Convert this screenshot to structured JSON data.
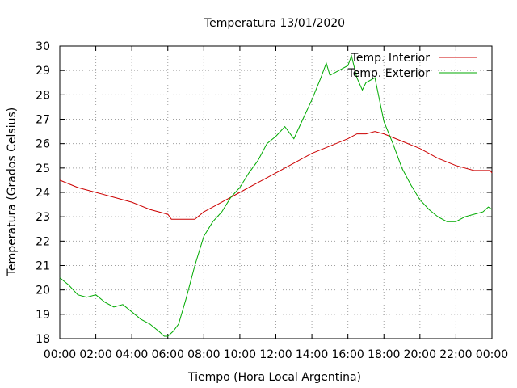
{
  "chart_data": {
    "type": "line",
    "title": "Temperatura 13/01/2020",
    "xlabel": "Tiempo (Hora Local Argentina)",
    "ylabel": "Temperatura (Grados Celsius)",
    "xlim": [
      "00:00",
      "24:00"
    ],
    "ylim": [
      18,
      30
    ],
    "grid": true,
    "legend_position": "top-right",
    "x_ticks": [
      "00:00",
      "02:00",
      "04:00",
      "06:00",
      "08:00",
      "10:00",
      "12:00",
      "14:00",
      "16:00",
      "18:00",
      "20:00",
      "22:00",
      "00:00"
    ],
    "y_ticks": [
      "18",
      "19",
      "20",
      "21",
      "22",
      "23",
      "24",
      "25",
      "26",
      "27",
      "28",
      "29",
      "30"
    ],
    "x_unit": "hours",
    "series": [
      {
        "name": "Temp. Interior",
        "color": "#cc0000",
        "points": [
          [
            0,
            24.5
          ],
          [
            1,
            24.2
          ],
          [
            2,
            24.0
          ],
          [
            3,
            23.8
          ],
          [
            4,
            23.6
          ],
          [
            5,
            23.3
          ],
          [
            6,
            23.1
          ],
          [
            6.2,
            22.9
          ],
          [
            7,
            22.9
          ],
          [
            7.5,
            22.9
          ],
          [
            8,
            23.2
          ],
          [
            9,
            23.6
          ],
          [
            10,
            24.0
          ],
          [
            11,
            24.4
          ],
          [
            12,
            24.8
          ],
          [
            13,
            25.2
          ],
          [
            14,
            25.6
          ],
          [
            15,
            25.9
          ],
          [
            16,
            26.2
          ],
          [
            16.5,
            26.4
          ],
          [
            17,
            26.4
          ],
          [
            17.5,
            26.5
          ],
          [
            18,
            26.4
          ],
          [
            19,
            26.1
          ],
          [
            20,
            25.8
          ],
          [
            21,
            25.4
          ],
          [
            22,
            25.1
          ],
          [
            23,
            24.9
          ],
          [
            23.9,
            24.9
          ],
          [
            24,
            24.8
          ]
        ]
      },
      {
        "name": "Temp. Exterior",
        "color": "#00aa00",
        "points": [
          [
            0,
            20.5
          ],
          [
            0.5,
            20.2
          ],
          [
            1,
            19.8
          ],
          [
            1.5,
            19.7
          ],
          [
            2,
            19.8
          ],
          [
            2.5,
            19.5
          ],
          [
            3,
            19.3
          ],
          [
            3.5,
            19.4
          ],
          [
            4,
            19.1
          ],
          [
            4.5,
            18.8
          ],
          [
            5,
            18.6
          ],
          [
            5.5,
            18.3
          ],
          [
            5.8,
            18.1
          ],
          [
            6,
            18.1
          ],
          [
            6.3,
            18.3
          ],
          [
            6.6,
            18.6
          ],
          [
            7,
            19.6
          ],
          [
            7.5,
            21.0
          ],
          [
            8,
            22.2
          ],
          [
            8.5,
            22.8
          ],
          [
            9,
            23.2
          ],
          [
            9.5,
            23.8
          ],
          [
            10,
            24.2
          ],
          [
            10.5,
            24.8
          ],
          [
            11,
            25.3
          ],
          [
            11.5,
            26.0
          ],
          [
            12,
            26.3
          ],
          [
            12.5,
            26.7
          ],
          [
            13,
            26.2
          ],
          [
            13.5,
            27.0
          ],
          [
            14,
            27.8
          ],
          [
            14.5,
            28.7
          ],
          [
            14.8,
            29.3
          ],
          [
            15,
            28.8
          ],
          [
            15.5,
            29.0
          ],
          [
            16,
            29.2
          ],
          [
            16.2,
            29.6
          ],
          [
            16.5,
            28.7
          ],
          [
            16.8,
            28.2
          ],
          [
            17,
            28.5
          ],
          [
            17.5,
            28.7
          ],
          [
            18,
            26.9
          ],
          [
            18.5,
            26.0
          ],
          [
            19,
            25.0
          ],
          [
            19.5,
            24.3
          ],
          [
            20,
            23.7
          ],
          [
            20.5,
            23.3
          ],
          [
            21,
            23.0
          ],
          [
            21.5,
            22.8
          ],
          [
            22,
            22.8
          ],
          [
            22.5,
            23.0
          ],
          [
            23,
            23.1
          ],
          [
            23.5,
            23.2
          ],
          [
            23.8,
            23.4
          ],
          [
            24,
            23.3
          ]
        ]
      }
    ]
  }
}
